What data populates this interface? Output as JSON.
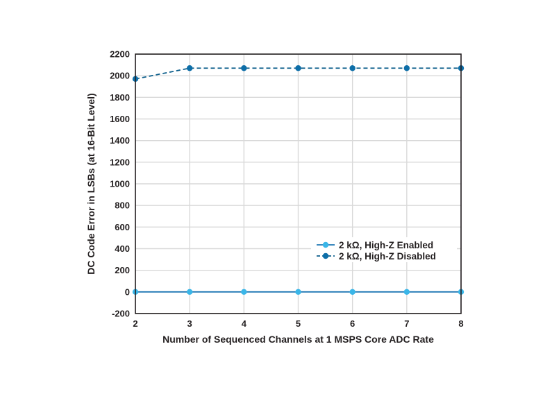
{
  "chart_data": {
    "type": "line",
    "title": "",
    "xlabel": "Number of Sequenced Channels at 1 MSPS Core ADC Rate",
    "ylabel": "DC Code Error in LSBs (at 16-Bit Level)",
    "xlim": [
      2,
      8
    ],
    "ylim": [
      -200,
      2200
    ],
    "x_ticks": [
      2,
      3,
      4,
      5,
      6,
      7,
      8
    ],
    "y_ticks": [
      -200,
      0,
      200,
      400,
      600,
      800,
      1000,
      1200,
      1400,
      1600,
      1800,
      2000,
      2200
    ],
    "x_tick_labels": [
      "2",
      "3",
      "4",
      "5",
      "6",
      "7",
      "8"
    ],
    "y_tick_labels": [
      "-200",
      "0",
      "200",
      "400",
      "600",
      "800",
      "1000",
      "1200",
      "1400",
      "1600",
      "1800",
      "2000",
      "2200"
    ],
    "grid": true,
    "legend_position": "center-right",
    "series": [
      {
        "name": "2 kΩ, High-Z Enabled",
        "x": [
          2,
          3,
          4,
          5,
          6,
          7,
          8
        ],
        "y": [
          0,
          0,
          0,
          0,
          0,
          0,
          0
        ],
        "line_color": "#1f77b4",
        "marker_color": "#3ab6e8",
        "line_style": "solid"
      },
      {
        "name": "2 kΩ, High-Z Disabled",
        "x": [
          2,
          3,
          4,
          5,
          6,
          7,
          8
        ],
        "y": [
          1970,
          2070,
          2070,
          2070,
          2070,
          2070,
          2070
        ],
        "line_color": "#0d5f8c",
        "marker_color": "#0d6ea8",
        "line_style": "dashed"
      }
    ]
  }
}
